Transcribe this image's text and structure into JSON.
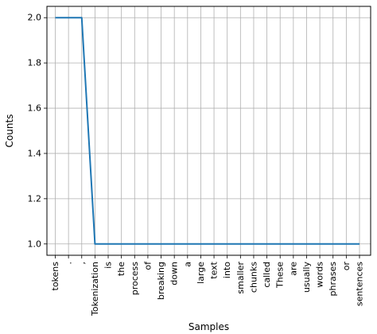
{
  "chart_data": {
    "type": "line",
    "title": "",
    "xlabel": "Samples",
    "ylabel": "Counts",
    "categories": [
      "tokens",
      ".",
      ",",
      "Tokenization",
      "is",
      "the",
      "process",
      "of",
      "breaking",
      "down",
      "a",
      "large",
      "text",
      "into",
      "smaller",
      "chunks",
      "called",
      "These",
      "are",
      "usually",
      "words",
      "phrases",
      "or",
      "sentences"
    ],
    "values": [
      2,
      2,
      2,
      1,
      1,
      1,
      1,
      1,
      1,
      1,
      1,
      1,
      1,
      1,
      1,
      1,
      1,
      1,
      1,
      1,
      1,
      1,
      1,
      1
    ],
    "ylim": [
      0.95,
      2.05
    ],
    "yticks": [
      1.0,
      1.2,
      1.4,
      1.6,
      1.8,
      2.0
    ],
    "ytick_labels": [
      "1.0",
      "1.2",
      "1.4",
      "1.6",
      "1.8",
      "2.0"
    ],
    "grid": true,
    "line_color": "#1f77b4"
  }
}
